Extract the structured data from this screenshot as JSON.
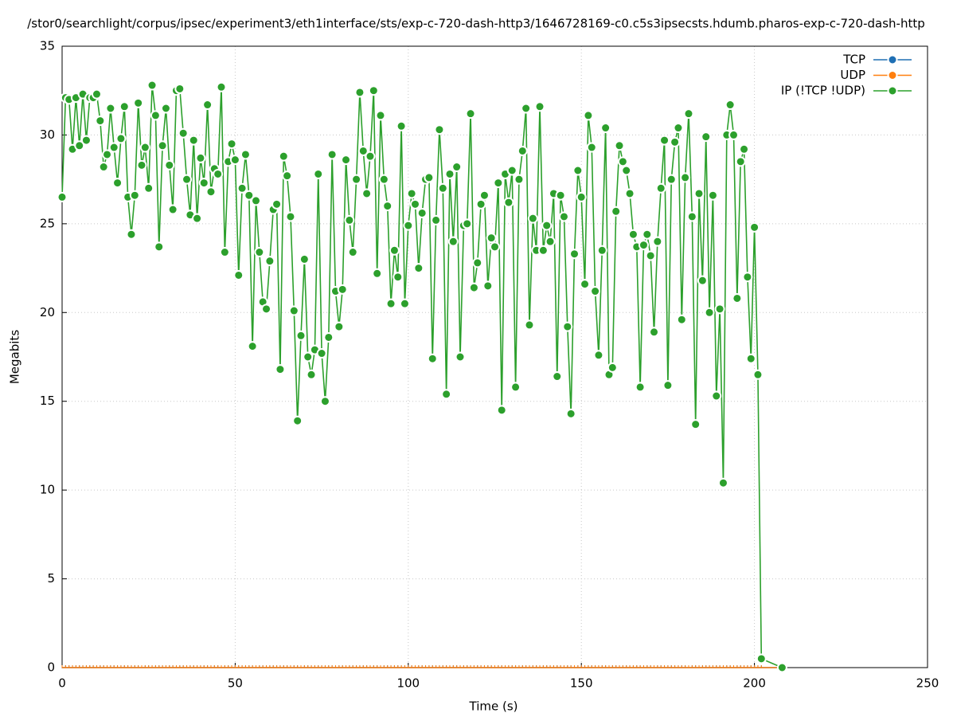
{
  "chart_data": {
    "type": "line",
    "title": "/stor0/searchlight/corpus/ipsec/experiment3/eth1interface/sts/exp-c-720-dash-http3/1646728169-c0.c5s3ipsecsts.hdumb.pharos-exp-c-720-dash-http",
    "xlabel": "Time (s)",
    "ylabel": "Megabits",
    "xlim": [
      0,
      250
    ],
    "xticks": [
      0,
      50,
      100,
      150,
      200,
      250
    ],
    "ylim": [
      0,
      35
    ],
    "yticks": [
      0,
      5,
      10,
      15,
      20,
      25,
      30,
      35
    ],
    "grid": true,
    "legend": "top-right",
    "x": [
      0,
      1,
      2,
      3,
      4,
      5,
      6,
      7,
      8,
      9,
      10,
      11,
      12,
      13,
      14,
      15,
      16,
      17,
      18,
      19,
      20,
      21,
      22,
      23,
      24,
      25,
      26,
      27,
      28,
      29,
      30,
      31,
      32,
      33,
      34,
      35,
      36,
      37,
      38,
      39,
      40,
      41,
      42,
      43,
      44,
      45,
      46,
      47,
      48,
      49,
      50,
      51,
      52,
      53,
      54,
      55,
      56,
      57,
      58,
      59,
      60,
      61,
      62,
      63,
      64,
      65,
      66,
      67,
      68,
      69,
      70,
      71,
      72,
      73,
      74,
      75,
      76,
      77,
      78,
      79,
      80,
      81,
      82,
      83,
      84,
      85,
      86,
      87,
      88,
      89,
      90,
      91,
      92,
      93,
      94,
      95,
      96,
      97,
      98,
      99,
      100,
      101,
      102,
      103,
      104,
      105,
      106,
      107,
      108,
      109,
      110,
      111,
      112,
      113,
      114,
      115,
      116,
      117,
      118,
      119,
      120,
      121,
      122,
      123,
      124,
      125,
      126,
      127,
      128,
      129,
      130,
      131,
      132,
      133,
      134,
      135,
      136,
      137,
      138,
      139,
      140,
      141,
      142,
      143,
      144,
      145,
      146,
      147,
      148,
      149,
      150,
      151,
      152,
      153,
      154,
      155,
      156,
      157,
      158,
      159,
      160,
      161,
      162,
      163,
      164,
      165,
      166,
      167,
      168,
      169,
      170,
      171,
      172,
      173,
      174,
      175,
      176,
      177,
      178,
      179,
      180,
      181,
      182,
      183,
      184,
      185,
      186,
      187,
      188,
      189,
      190,
      191,
      192,
      193,
      194,
      195,
      196,
      197,
      198,
      199,
      200,
      201,
      202,
      208
    ],
    "series": [
      {
        "name": "TCP",
        "color": "#1f6fb4",
        "values": [
          0,
          0,
          0,
          0,
          0,
          0,
          0,
          0,
          0,
          0,
          0,
          0,
          0,
          0,
          0,
          0,
          0,
          0,
          0,
          0,
          0,
          0,
          0,
          0,
          0,
          0,
          0,
          0,
          0,
          0,
          0,
          0,
          0,
          0,
          0,
          0,
          0,
          0,
          0,
          0,
          0,
          0,
          0,
          0,
          0,
          0,
          0,
          0,
          0,
          0,
          0,
          0,
          0,
          0,
          0,
          0,
          0,
          0,
          0,
          0,
          0,
          0,
          0,
          0,
          0,
          0,
          0,
          0,
          0,
          0,
          0,
          0,
          0,
          0,
          0,
          0,
          0,
          0,
          0,
          0,
          0,
          0,
          0,
          0,
          0,
          0,
          0,
          0,
          0,
          0,
          0,
          0,
          0,
          0,
          0,
          0,
          0,
          0,
          0,
          0,
          0,
          0,
          0,
          0,
          0,
          0,
          0,
          0,
          0,
          0,
          0,
          0,
          0,
          0,
          0,
          0,
          0,
          0,
          0,
          0,
          0,
          0,
          0,
          0,
          0,
          0,
          0,
          0,
          0,
          0,
          0,
          0,
          0,
          0,
          0,
          0,
          0,
          0,
          0,
          0,
          0,
          0,
          0,
          0,
          0,
          0,
          0,
          0,
          0,
          0,
          0,
          0,
          0,
          0,
          0,
          0,
          0,
          0,
          0,
          0,
          0,
          0,
          0,
          0,
          0,
          0,
          0,
          0,
          0,
          0,
          0,
          0,
          0,
          0,
          0,
          0,
          0,
          0,
          0,
          0,
          0,
          0,
          0,
          0,
          0,
          0,
          0,
          0,
          0,
          0,
          0,
          0,
          0,
          0,
          0,
          0,
          0,
          0,
          0,
          0,
          0,
          0,
          0,
          0
        ]
      },
      {
        "name": "UDP",
        "color": "#ff7f0e",
        "values": [
          0,
          0,
          0,
          0,
          0,
          0,
          0,
          0,
          0,
          0,
          0,
          0,
          0,
          0,
          0,
          0,
          0,
          0,
          0,
          0,
          0,
          0,
          0,
          0,
          0,
          0,
          0,
          0,
          0,
          0,
          0,
          0,
          0,
          0,
          0,
          0,
          0,
          0,
          0,
          0,
          0,
          0,
          0,
          0,
          0,
          0,
          0,
          0,
          0,
          0,
          0,
          0,
          0,
          0,
          0,
          0,
          0,
          0,
          0,
          0,
          0,
          0,
          0,
          0,
          0,
          0,
          0,
          0,
          0,
          0,
          0,
          0,
          0,
          0,
          0,
          0,
          0,
          0,
          0,
          0,
          0,
          0,
          0,
          0,
          0,
          0,
          0,
          0,
          0,
          0,
          0,
          0,
          0,
          0,
          0,
          0,
          0,
          0,
          0,
          0,
          0,
          0,
          0,
          0,
          0,
          0,
          0,
          0,
          0,
          0,
          0,
          0,
          0,
          0,
          0,
          0,
          0,
          0,
          0,
          0,
          0,
          0,
          0,
          0,
          0,
          0,
          0,
          0,
          0,
          0,
          0,
          0,
          0,
          0,
          0,
          0,
          0,
          0,
          0,
          0,
          0,
          0,
          0,
          0,
          0,
          0,
          0,
          0,
          0,
          0,
          0,
          0,
          0,
          0,
          0,
          0,
          0,
          0,
          0,
          0,
          0,
          0,
          0,
          0,
          0,
          0,
          0,
          0,
          0,
          0,
          0,
          0,
          0,
          0,
          0,
          0,
          0,
          0,
          0,
          0,
          0,
          0,
          0,
          0,
          0,
          0,
          0,
          0,
          0,
          0,
          0,
          0,
          0,
          0,
          0,
          0,
          0,
          0,
          0,
          0,
          0,
          0,
          0,
          0
        ]
      },
      {
        "name": "IP (!TCP  !UDP)",
        "color": "#2ca02c",
        "values": [
          26.5,
          32.1,
          32.0,
          29.2,
          32.1,
          29.4,
          32.3,
          29.7,
          32.1,
          32.1,
          32.3,
          30.8,
          28.2,
          28.9,
          31.5,
          29.3,
          27.3,
          29.8,
          31.6,
          26.5,
          24.4,
          26.6,
          31.8,
          28.3,
          29.3,
          27.0,
          32.8,
          31.1,
          23.7,
          29.4,
          31.5,
          28.3,
          25.8,
          32.5,
          32.6,
          30.1,
          27.5,
          25.5,
          29.7,
          25.3,
          28.7,
          27.3,
          31.7,
          26.8,
          28.1,
          27.8,
          32.7,
          23.4,
          28.5,
          29.5,
          28.6,
          22.1,
          27.0,
          28.9,
          26.6,
          18.1,
          26.3,
          23.4,
          20.6,
          20.2,
          22.9,
          25.8,
          26.1,
          16.8,
          28.8,
          27.7,
          25.4,
          20.1,
          13.9,
          18.7,
          23.0,
          17.5,
          16.5,
          17.9,
          27.8,
          17.7,
          15.0,
          18.6,
          28.9,
          21.2,
          19.2,
          21.3,
          28.6,
          25.2,
          23.4,
          27.5,
          32.4,
          29.1,
          26.7,
          28.8,
          32.5,
          22.2,
          31.1,
          27.5,
          26.0,
          20.5,
          23.5,
          22.0,
          30.5,
          20.5,
          24.9,
          26.7,
          26.1,
          22.5,
          25.6,
          27.5,
          27.6,
          17.4,
          25.2,
          30.3,
          27.0,
          15.4,
          27.8,
          24.0,
          28.2,
          17.5,
          24.9,
          25.0,
          31.2,
          21.4,
          22.8,
          26.1,
          26.6,
          21.5,
          24.2,
          23.7,
          27.3,
          14.5,
          27.8,
          26.2,
          28.0,
          15.8,
          27.5,
          29.1,
          31.5,
          19.3,
          25.3,
          23.5,
          31.6,
          23.5,
          24.9,
          24.0,
          26.7,
          16.4,
          26.6,
          25.4,
          19.2,
          14.3,
          23.3,
          28.0,
          26.5,
          21.6,
          31.1,
          29.3,
          21.2,
          17.6,
          23.5,
          30.4,
          16.5,
          16.9,
          25.7,
          29.4,
          28.5,
          28.0,
          26.7,
          24.4,
          23.7,
          15.8,
          23.8,
          24.4,
          23.2,
          18.9,
          24.0,
          27.0,
          29.7,
          15.9,
          27.5,
          29.6,
          30.4,
          19.6,
          27.6,
          31.2,
          25.4,
          13.7,
          26.7,
          21.8,
          29.9,
          20.0,
          26.6,
          15.3,
          20.2,
          10.4,
          30.0,
          31.7,
          30.0,
          20.8,
          28.5,
          29.2,
          22.0,
          17.4,
          24.8,
          16.5,
          0.5,
          0
        ]
      }
    ]
  }
}
